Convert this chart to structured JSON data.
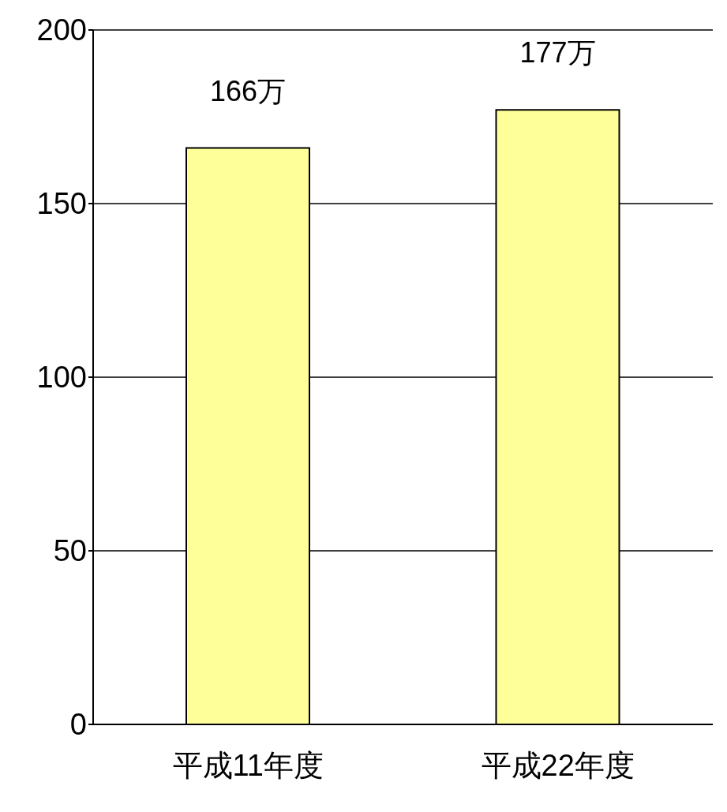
{
  "chart_data": {
    "type": "bar",
    "categories": [
      "平成11年度",
      "平成22年度"
    ],
    "values": [
      166,
      177
    ],
    "value_labels": [
      "166万",
      "177万"
    ],
    "color": "#ffff99",
    "ylim": [
      0,
      200
    ],
    "yticks": [
      0,
      50,
      100,
      150,
      200
    ],
    "grid": "y"
  }
}
